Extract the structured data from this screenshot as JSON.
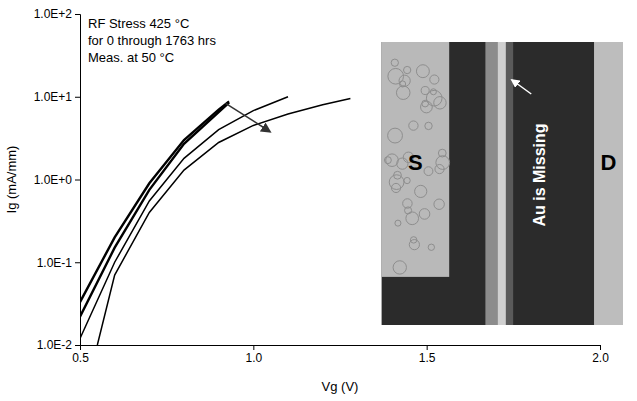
{
  "chart_data": {
    "type": "line",
    "x_label": "Vg (V)",
    "y_label": "Ig (mA/mm)",
    "annotations": [
      "RF Stress 425 °C",
      "for 0 through 1763 hrs",
      "Meas. at 50 °C",
      "S",
      "D",
      "Au is Missing"
    ],
    "log": "y",
    "grid": false,
    "xlim": [
      0.5,
      2.0
    ],
    "xticks": [
      0.5,
      {
        "value": 1,
        "label": "1.0"
      },
      1.5,
      {
        "value": 2,
        "label": "2.0"
      }
    ],
    "ylim": [
      0.01,
      100
    ],
    "yticks": [
      {
        "value": 0.01,
        "label": "1.0E-2"
      },
      {
        "value": 0.1,
        "label": "1.0E-1"
      },
      {
        "value": 1,
        "label": "1.0E+0"
      },
      {
        "value": 10,
        "label": "1.0E+1"
      },
      {
        "value": 100,
        "label": "1.0E+2"
      }
    ],
    "series": [
      {
        "color": "#000000",
        "x": [
          0.5,
          0.6,
          0.7,
          0.8,
          0.9,
          0.93
        ],
        "values": [
          0.033,
          0.2,
          0.9,
          3.0,
          7.0,
          8.8
        ]
      },
      {
        "color": "#000000",
        "x": [
          0.5,
          0.6,
          0.7,
          0.8,
          0.9,
          0.93
        ],
        "values": [
          0.022,
          0.15,
          0.75,
          2.7,
          6.5,
          8.5
        ]
      },
      {
        "color": "#000000",
        "x": [
          0.5,
          0.6,
          0.7,
          0.8,
          0.9,
          1.0,
          1.1
        ],
        "values": [
          0.012,
          0.1,
          0.55,
          1.8,
          4.0,
          6.8,
          10
        ]
      },
      {
        "color": "#000000",
        "x": [
          0.55,
          0.6,
          0.7,
          0.8,
          0.9,
          1.0,
          1.1,
          1.2,
          1.28
        ],
        "values": [
          0.01,
          0.07,
          0.4,
          1.3,
          2.8,
          4.5,
          6.2,
          8.0,
          9.5
        ]
      }
    ]
  }
}
